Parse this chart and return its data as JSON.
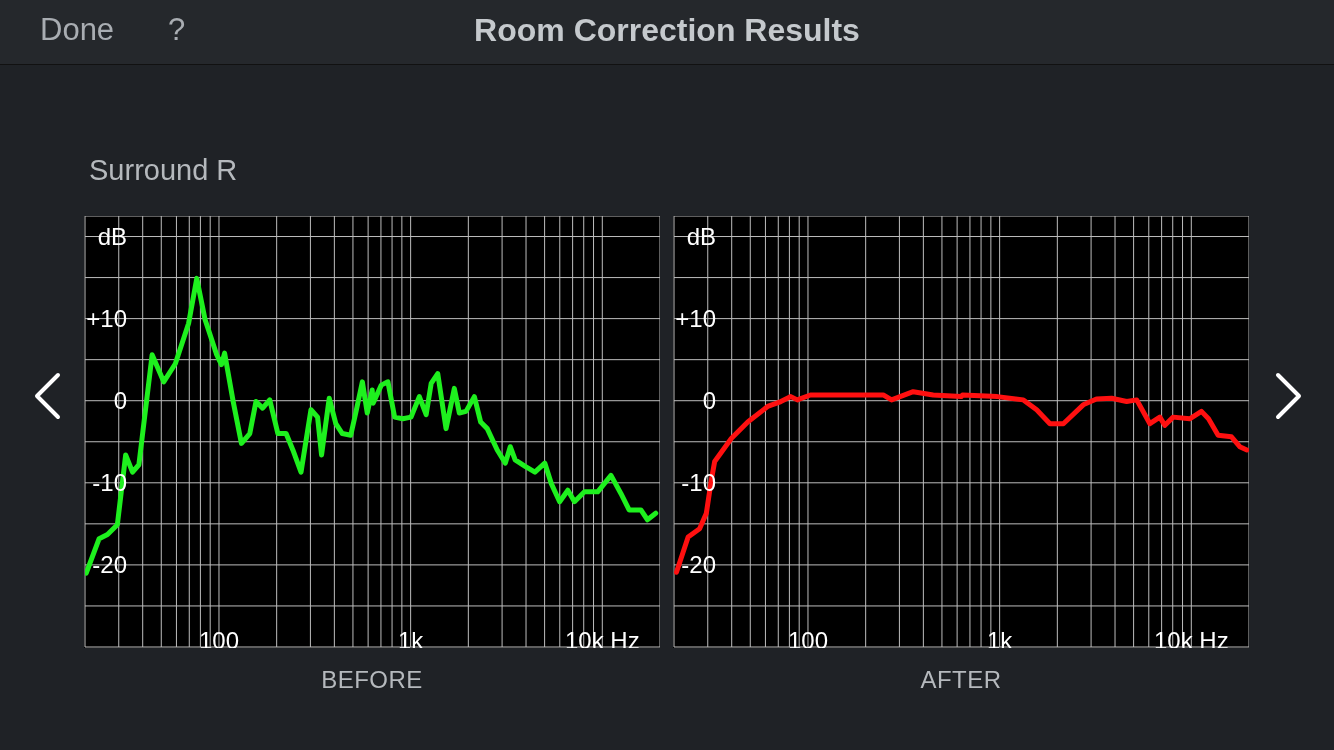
{
  "chart_data": [
    {
      "type": "line",
      "title": "Room Correction Results",
      "subtitle": "Surround R",
      "xlabel": "BEFORE",
      "annotations": [
        "Done",
        "?"
      ],
      "log": "x",
      "grid": true,
      "color": "#1ef01e",
      "x": [
        20.3,
        23.7,
        26.2,
        29.5,
        32.6,
        35.4,
        38.2,
        44.8,
        51.5,
        59.2,
        69.4,
        76.6,
        84.6,
        97.3,
        103,
        107,
        118.6,
        131,
        144.8,
        156,
        169,
        184,
        203,
        224,
        243,
        268,
        302,
        327,
        343,
        376,
        407,
        440,
        487,
        517,
        560,
        594,
        630,
        637,
        703,
        761,
        825,
        910,
        1005,
        1110,
        1205,
        1280,
        1385,
        1530,
        1690,
        1795,
        1945,
        2150,
        2320,
        2510,
        2830,
        3120,
        3310,
        3510,
        3960,
        4450,
        5010,
        5420,
        5990,
        6610,
        7160,
        8070,
        9460,
        11100,
        12500,
        13800,
        15900,
        17200,
        19000
      ],
      "values": [
        -21,
        -16.8,
        -16.3,
        -15.1,
        -6.6,
        -8.7,
        -7.8,
        5.6,
        2.3,
        4.5,
        9.4,
        14.9,
        9.9,
        5.6,
        4.4,
        5.8,
        -0.1,
        -5.2,
        -4,
        -0.1,
        -0.9,
        0.1,
        -4,
        -4,
        -6,
        -8.7,
        -1.1,
        -2,
        -6.6,
        0.3,
        -2.8,
        -4,
        -4.2,
        -1.5,
        2.3,
        -1.5,
        1.3,
        -0.3,
        1.9,
        2.3,
        -2,
        -2.2,
        -2,
        0.5,
        -1.7,
        2.1,
        3.3,
        -3.4,
        1.5,
        -1.5,
        -1.3,
        0.5,
        -2.6,
        -3.4,
        -6,
        -7.6,
        -5.6,
        -7.2,
        -8,
        -8.7,
        -7.6,
        -10.1,
        -12.3,
        -10.9,
        -12.3,
        -11.1,
        -11.1,
        -9.1,
        -11.3,
        -13.3,
        -13.3,
        -14.5,
        -13.7
      ],
      "xlim": [
        20,
        20000
      ],
      "xticks": [
        {
          "value": 20,
          "label": null
        },
        {
          "value": 30,
          "label": null
        },
        {
          "value": 40,
          "label": null
        },
        {
          "value": 50,
          "label": null
        },
        {
          "value": 60,
          "label": null
        },
        {
          "value": 70,
          "label": null
        },
        {
          "value": 80,
          "label": null
        },
        {
          "value": 90,
          "label": null
        },
        100,
        {
          "value": 200,
          "label": null
        },
        {
          "value": 300,
          "label": null
        },
        {
          "value": 400,
          "label": null
        },
        {
          "value": 500,
          "label": null
        },
        {
          "value": 600,
          "label": null
        },
        {
          "value": 700,
          "label": null
        },
        {
          "value": 800,
          "label": null
        },
        {
          "value": 900,
          "label": null
        },
        {
          "value": 1000,
          "label": "1k"
        },
        {
          "value": 2000,
          "label": null
        },
        {
          "value": 3000,
          "label": null
        },
        {
          "value": 4000,
          "label": null
        },
        {
          "value": 5000,
          "label": null
        },
        {
          "value": 6000,
          "label": null
        },
        {
          "value": 7000,
          "label": null
        },
        {
          "value": 8000,
          "label": null
        },
        {
          "value": 9000,
          "label": null
        },
        {
          "value": 10000,
          "label": "10k Hz"
        }
      ],
      "ylim": [
        -30,
        22.5
      ],
      "yticks": [
        {
          "value": -25,
          "label": null
        },
        -20,
        {
          "value": -15,
          "label": null
        },
        -10,
        {
          "value": -5,
          "label": null
        },
        0,
        {
          "value": 5,
          "label": null
        },
        {
          "value": 10,
          "label": "+10"
        },
        {
          "value": 15,
          "label": null
        },
        {
          "value": 20,
          "label": "dB"
        }
      ]
    },
    {
      "type": "line",
      "xlabel": "AFTER",
      "log": "x",
      "grid": true,
      "color": "#ff1010",
      "x": [
        20.6,
        23.7,
        27.2,
        29.5,
        31.3,
        32.6,
        39.8,
        48.5,
        61.6,
        72.2,
        81.4,
        88,
        103,
        148,
        247,
        273,
        354,
        450,
        630,
        640,
        973,
        1330,
        1560,
        1830,
        2150,
        2730,
        3200,
        3840,
        4600,
        5190,
        6080,
        6850,
        7280,
        8040,
        9810,
        11300,
        12300,
        13800,
        16200,
        17900,
        19500
      ],
      "values": [
        -20.9,
        -16.6,
        -15.6,
        -13.7,
        -9.7,
        -7.4,
        -4.6,
        -2.6,
        -0.7,
        -0.1,
        0.5,
        0.1,
        0.7,
        0.7,
        0.7,
        0.1,
        1.1,
        0.7,
        0.5,
        0.7,
        0.5,
        0.1,
        -1.1,
        -2.8,
        -2.8,
        -0.5,
        0.2,
        0.3,
        -0.1,
        0.1,
        -2.8,
        -2,
        -3,
        -2,
        -2.2,
        -1.3,
        -2.2,
        -4.2,
        -4.4,
        -5.6,
        -6
      ],
      "xlim": [
        20,
        20000
      ],
      "xticks": [
        {
          "value": 20,
          "label": null
        },
        {
          "value": 30,
          "label": null
        },
        {
          "value": 40,
          "label": null
        },
        {
          "value": 50,
          "label": null
        },
        {
          "value": 60,
          "label": null
        },
        {
          "value": 70,
          "label": null
        },
        {
          "value": 80,
          "label": null
        },
        {
          "value": 90,
          "label": null
        },
        100,
        {
          "value": 200,
          "label": null
        },
        {
          "value": 300,
          "label": null
        },
        {
          "value": 400,
          "label": null
        },
        {
          "value": 500,
          "label": null
        },
        {
          "value": 600,
          "label": null
        },
        {
          "value": 700,
          "label": null
        },
        {
          "value": 800,
          "label": null
        },
        {
          "value": 900,
          "label": null
        },
        {
          "value": 1000,
          "label": "1k"
        },
        {
          "value": 2000,
          "label": null
        },
        {
          "value": 3000,
          "label": null
        },
        {
          "value": 4000,
          "label": null
        },
        {
          "value": 5000,
          "label": null
        },
        {
          "value": 6000,
          "label": null
        },
        {
          "value": 7000,
          "label": null
        },
        {
          "value": 8000,
          "label": null
        },
        {
          "value": 9000,
          "label": null
        },
        {
          "value": 10000,
          "label": "10k Hz"
        }
      ],
      "ylim": [
        -30,
        22.5
      ],
      "yticks": [
        {
          "value": -25,
          "label": null
        },
        -20,
        {
          "value": -15,
          "label": null
        },
        -10,
        {
          "value": -5,
          "label": null
        },
        0,
        {
          "value": 5,
          "label": null
        },
        {
          "value": 10,
          "label": "+10"
        },
        {
          "value": 15,
          "label": null
        },
        {
          "value": 20,
          "label": "dB"
        }
      ]
    }
  ]
}
